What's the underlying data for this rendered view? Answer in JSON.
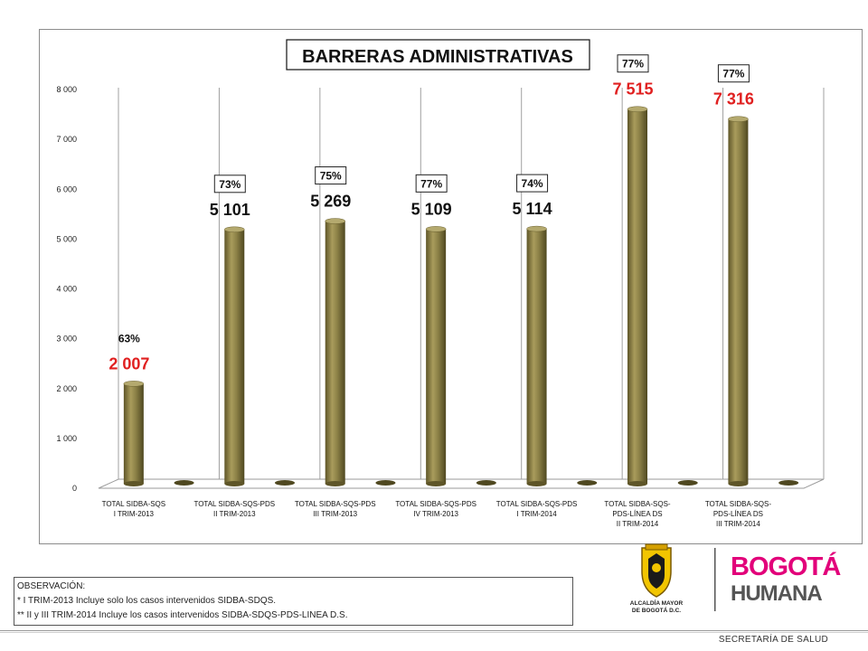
{
  "chart_data": {
    "type": "bar",
    "title": "BARRERAS ADMINISTRATIVAS",
    "categories": [
      [
        "TOTAL SIDBA-SQS",
        "I TRIM-2013"
      ],
      [
        "TOTAL SIDBA-SQS-PDS",
        "II TRIM-2013"
      ],
      [
        "TOTAL SIDBA-SQS-PDS",
        "III TRIM-2013"
      ],
      [
        "TOTAL SIDBA-SQS-PDS",
        "IV TRIM-2013"
      ],
      [
        "TOTAL SIDBA-SQS-PDS",
        "I TRIM-2014"
      ],
      [
        "TOTAL SIDBA-SQS-",
        "PDS-LÍNEA DS",
        "II TRIM-2014"
      ],
      [
        "TOTAL SIDBA-SQS-",
        "PDS-LÍNEA DS",
        "III TRIM-2014"
      ]
    ],
    "values": [
      2007,
      5101,
      5269,
      5109,
      5114,
      7515,
      7316
    ],
    "value_labels": [
      "2 007",
      "5 101",
      "5 269",
      "5 109",
      "5 114",
      "7 515",
      "7 316"
    ],
    "value_label_colors": [
      "#e02020",
      "#111111",
      "#111111",
      "#111111",
      "#111111",
      "#e02020",
      "#e02020"
    ],
    "percent_labels": [
      "63%",
      "73%",
      "75%",
      "77%",
      "74%",
      "77%",
      "77%"
    ],
    "percent_boxed": [
      false,
      true,
      true,
      true,
      true,
      true,
      true
    ],
    "ylim": [
      0,
      8000
    ],
    "yticks": [
      0,
      1000,
      2000,
      3000,
      4000,
      5000,
      6000,
      7000,
      8000
    ],
    "ytick_labels": [
      "0",
      "1 000",
      "2 000",
      "3 000",
      "4 000",
      "5 000",
      "6 000",
      "7 000",
      "8 000"
    ],
    "grid": "vertical",
    "bar_color": "#8c8147",
    "legend": "none"
  },
  "notes": {
    "heading": "OBSERVACIÓN:",
    "line1": "* I TRIM-2013 Incluye solo los casos intervenidos SIDBA-SDQS.",
    "line2": "** II y III TRIM-2014 Incluye los casos intervenidos SIDBA-SDQS-PDS-LINEA  D.S."
  },
  "logos": {
    "alcaldia_line1": "ALCALDÍA MAYOR",
    "alcaldia_line2": "DE BOGOTÁ D.C.",
    "brand_line1": "BOGOTÁ",
    "brand_line2": "HUMANA"
  },
  "footer": {
    "text": "SECRETARÍA DE SALUD"
  }
}
